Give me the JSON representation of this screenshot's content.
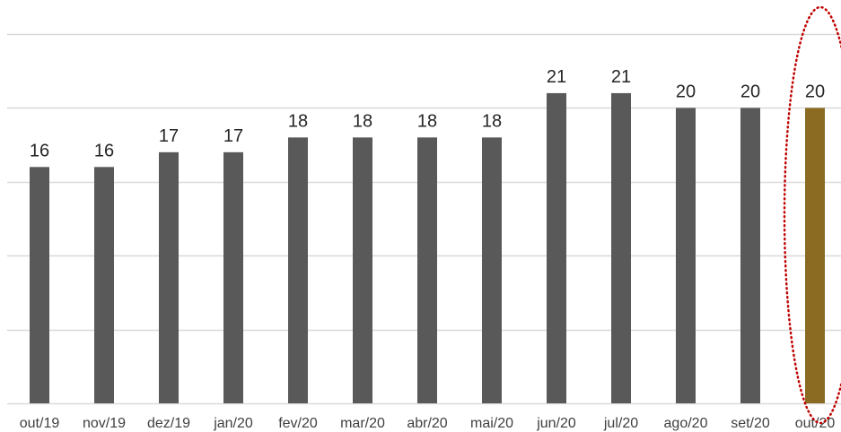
{
  "chart_data": {
    "type": "bar",
    "title": "",
    "xlabel": "",
    "ylabel": "",
    "categories": [
      "out/19",
      "nov/19",
      "dez/19",
      "jan/20",
      "fev/20",
      "mar/20",
      "abr/20",
      "mai/20",
      "jun/20",
      "jul/20",
      "ago/20",
      "set/20",
      "out/20"
    ],
    "values": [
      16,
      16,
      17,
      17,
      18,
      18,
      18,
      18,
      21,
      21,
      20,
      20,
      20
    ],
    "data_labels": [
      "16",
      "16",
      "17",
      "17",
      "18",
      "18",
      "18",
      "18",
      "21",
      "21",
      "20",
      "20",
      "20"
    ],
    "ylim": [
      0,
      25
    ],
    "gridlines": [
      5,
      10,
      15,
      20,
      25
    ],
    "grid": true,
    "legend": "none",
    "colors": {
      "default_bar": "#595959",
      "highlight_bar": "#8B6B21",
      "gridline": "#D9D9D9",
      "annotation": "#C00000"
    },
    "highlight_index": 12,
    "annotation": {
      "shape": "dotted-ellipse",
      "target_index": 12
    }
  }
}
